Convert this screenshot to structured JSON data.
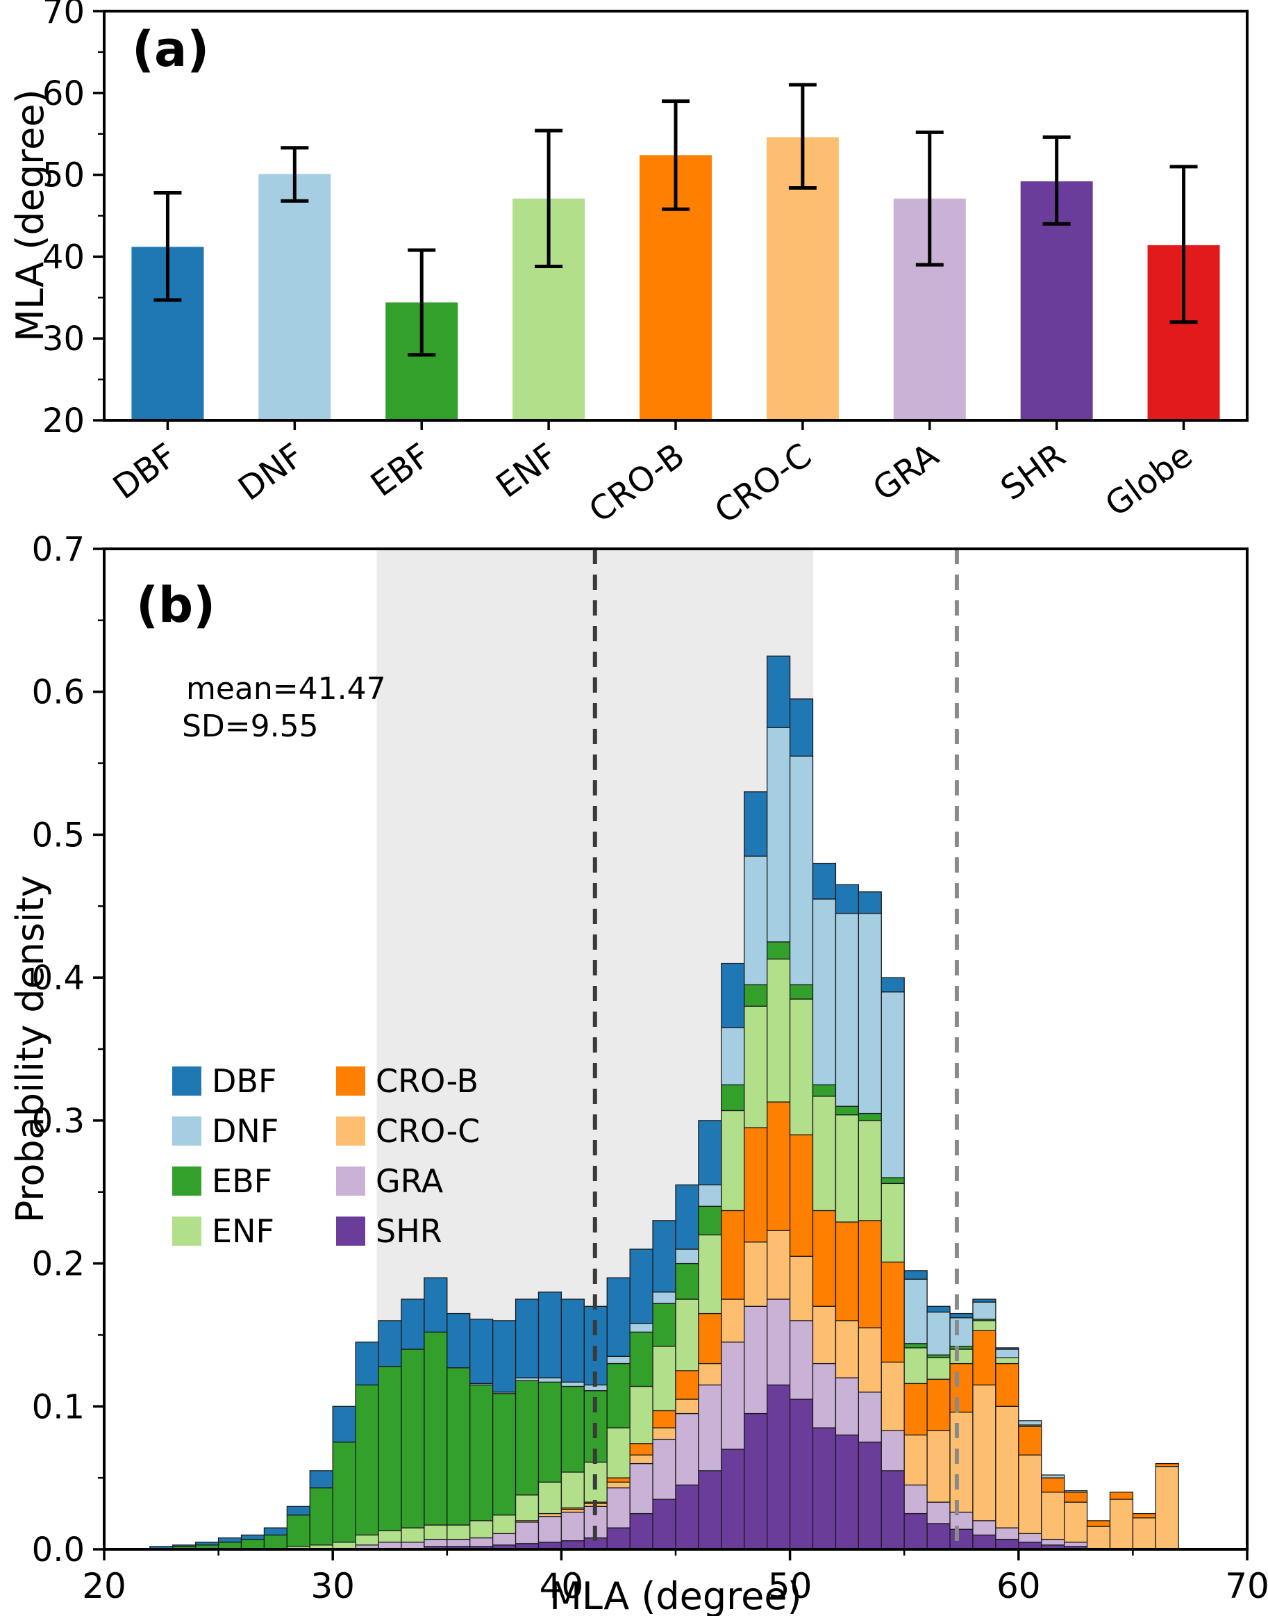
{
  "panel_a": {
    "label": "(a)",
    "ylabel": "MLA (degree)"
  },
  "panel_b": {
    "label": "(b)",
    "xlabel": "MLA (degree)",
    "ylabel": "Probability density",
    "mean_label": "mean=41.47",
    "sd_label": "SD=9.55"
  },
  "chart_data": [
    {
      "type": "bar",
      "panel": "a",
      "title": "",
      "ylabel": "MLA (degree)",
      "ylim": [
        20,
        70
      ],
      "yticks": [
        20,
        30,
        40,
        50,
        60,
        70
      ],
      "yticks_minor": [
        25,
        35,
        45,
        55,
        65
      ],
      "categories": [
        "DBF",
        "DNF",
        "EBF",
        "ENF",
        "CRO-B",
        "CRO-C",
        "GRA",
        "SHR",
        "Globe"
      ],
      "values": [
        41.2,
        50.1,
        34.4,
        47.1,
        52.4,
        54.6,
        47.1,
        49.2,
        41.4
      ],
      "error_low": [
        34.7,
        46.8,
        28.0,
        38.8,
        45.8,
        48.4,
        39.0,
        44.0,
        32.0
      ],
      "error_high": [
        47.8,
        53.3,
        40.8,
        55.4,
        59.0,
        61.0,
        55.2,
        54.6,
        51.0
      ],
      "colors": [
        "#1f78b4",
        "#a6cee3",
        "#33a02c",
        "#b2df8a",
        "#ff7f00",
        "#fdbf6f",
        "#cab2d6",
        "#6a3d9a",
        "#e31a1c"
      ]
    },
    {
      "type": "bar",
      "subtype": "stacked-histogram",
      "panel": "b",
      "xlabel": "MLA (degree)",
      "ylabel": "Probability density",
      "xlim": [
        20,
        70
      ],
      "ylim": [
        0,
        0.7
      ],
      "xticks": [
        20,
        30,
        40,
        50,
        60,
        70
      ],
      "xticks_minor": [
        25,
        35,
        45,
        55,
        65
      ],
      "yticks": [
        0,
        0.1,
        0.2,
        0.3,
        0.4,
        0.5,
        0.6,
        0.7
      ],
      "yticks_minor": [
        0.05,
        0.15,
        0.25,
        0.35,
        0.45,
        0.55,
        0.65
      ],
      "mean": 41.47,
      "sd": 9.55,
      "shaded_region": [
        31.92,
        51.02
      ],
      "shaded_color": "#ebebeb",
      "vlines": [
        {
          "x": 41.47,
          "color": "#3a3a3a"
        },
        {
          "x": 57.3,
          "color": "#8a8a8a"
        }
      ],
      "bin_start": 22,
      "bin_width": 1,
      "stack_order": [
        "SHR",
        "GRA",
        "CRO-C",
        "CRO-B",
        "ENF",
        "EBF",
        "DNF",
        "DBF"
      ],
      "legend": [
        {
          "label": "DBF",
          "color": "#1f78b4"
        },
        {
          "label": "DNF",
          "color": "#a6cee3"
        },
        {
          "label": "EBF",
          "color": "#33a02c"
        },
        {
          "label": "ENF",
          "color": "#b2df8a"
        },
        {
          "label": "CRO-B",
          "color": "#ff7f00"
        },
        {
          "label": "CRO-C",
          "color": "#fdbf6f"
        },
        {
          "label": "GRA",
          "color": "#cab2d6"
        },
        {
          "label": "SHR",
          "color": "#6a3d9a"
        }
      ],
      "series": [
        {
          "name": "DBF",
          "color": "#1f78b4",
          "values": [
            0.002,
            0.001,
            0.002,
            0.003,
            0.003,
            0.005,
            0.006,
            0.012,
            0.025,
            0.03,
            0.032,
            0.035,
            0.038,
            0.038,
            0.045,
            0.05,
            0.055,
            0.06,
            0.058,
            0.055,
            0.055,
            0.052,
            0.05,
            0.045,
            0.045,
            0.045,
            0.045,
            0.05,
            0.04,
            0.025,
            0.02,
            0.015,
            0.01,
            0.006,
            0.004,
            0.003,
            0.002,
            0.001,
            0,
            0,
            0,
            0,
            0,
            0,
            0
          ]
        },
        {
          "name": "DNF",
          "color": "#a6cee3",
          "values": [
            0,
            0,
            0,
            0,
            0,
            0,
            0,
            0,
            0,
            0,
            0,
            0,
            0,
            0,
            0.001,
            0.001,
            0.002,
            0.003,
            0.003,
            0.004,
            0.005,
            0.006,
            0.008,
            0.01,
            0.015,
            0.04,
            0.09,
            0.15,
            0.16,
            0.13,
            0.135,
            0.14,
            0.13,
            0.045,
            0.03,
            0.02,
            0.012,
            0.006,
            0.003,
            0.002,
            0.001,
            0,
            0,
            0,
            0
          ]
        },
        {
          "name": "EBF",
          "color": "#33a02c",
          "values": [
            0,
            0.002,
            0.003,
            0.005,
            0.007,
            0.01,
            0.022,
            0.04,
            0.07,
            0.105,
            0.115,
            0.125,
            0.135,
            0.11,
            0.095,
            0.085,
            0.08,
            0.07,
            0.06,
            0.05,
            0.045,
            0.038,
            0.03,
            0.025,
            0.02,
            0.018,
            0.015,
            0.012,
            0.01,
            0.008,
            0.006,
            0.005,
            0.004,
            0.003,
            0.002,
            0.002,
            0.001,
            0,
            0,
            0,
            0,
            0,
            0,
            0,
            0
          ]
        },
        {
          "name": "ENF",
          "color": "#b2df8a",
          "values": [
            0,
            0,
            0,
            0,
            0,
            0,
            0.002,
            0.003,
            0.005,
            0.007,
            0.008,
            0.01,
            0.01,
            0.01,
            0.012,
            0.013,
            0.018,
            0.022,
            0.025,
            0.028,
            0.035,
            0.04,
            0.045,
            0.05,
            0.055,
            0.07,
            0.085,
            0.1,
            0.095,
            0.08,
            0.075,
            0.07,
            0.055,
            0.025,
            0.015,
            0.01,
            0.007,
            0.004,
            0.001,
            0,
            0,
            0,
            0,
            0,
            0
          ]
        },
        {
          "name": "CRO-B",
          "color": "#ff7f00",
          "values": [
            0,
            0,
            0,
            0,
            0,
            0,
            0,
            0,
            0,
            0,
            0,
            0,
            0,
            0,
            0,
            0,
            0,
            0,
            0.001,
            0.001,
            0.003,
            0.008,
            0.012,
            0.02,
            0.035,
            0.062,
            0.08,
            0.09,
            0.085,
            0.067,
            0.069,
            0.075,
            0.07,
            0.036,
            0.036,
            0.034,
            0.038,
            0.03,
            0.02,
            0.01,
            0.007,
            0.004,
            0.005,
            0.003,
            0.002
          ]
        },
        {
          "name": "CRO-C",
          "color": "#fdbf6f",
          "values": [
            0,
            0,
            0,
            0,
            0,
            0,
            0,
            0,
            0,
            0,
            0,
            0,
            0,
            0,
            0,
            0,
            0.001,
            0.002,
            0.002,
            0.002,
            0.004,
            0.006,
            0.008,
            0.01,
            0.015,
            0.03,
            0.045,
            0.048,
            0.045,
            0.04,
            0.04,
            0.045,
            0.048,
            0.035,
            0.05,
            0.07,
            0.095,
            0.085,
            0.055,
            0.033,
            0.028,
            0.016,
            0.035,
            0.022,
            0.058
          ]
        },
        {
          "name": "GRA",
          "color": "#cab2d6",
          "values": [
            0,
            0,
            0,
            0,
            0,
            0,
            0,
            0,
            0,
            0.003,
            0.005,
            0.005,
            0.005,
            0.005,
            0.006,
            0.008,
            0.015,
            0.018,
            0.02,
            0.022,
            0.028,
            0.035,
            0.042,
            0.05,
            0.06,
            0.075,
            0.075,
            0.06,
            0.055,
            0.045,
            0.04,
            0.035,
            0.028,
            0.02,
            0.015,
            0.012,
            0.01,
            0.008,
            0.006,
            0.004,
            0.003,
            0,
            0,
            0,
            0
          ]
        },
        {
          "name": "SHR",
          "color": "#6a3d9a",
          "values": [
            0,
            0,
            0,
            0,
            0,
            0,
            0,
            0,
            0,
            0,
            0,
            0,
            0.002,
            0.002,
            0.002,
            0.003,
            0.004,
            0.005,
            0.006,
            0.008,
            0.015,
            0.025,
            0.035,
            0.045,
            0.055,
            0.07,
            0.095,
            0.115,
            0.105,
            0.085,
            0.08,
            0.075,
            0.055,
            0.025,
            0.018,
            0.014,
            0.01,
            0.007,
            0.005,
            0.003,
            0.002,
            0,
            0,
            0,
            0
          ]
        }
      ]
    }
  ]
}
